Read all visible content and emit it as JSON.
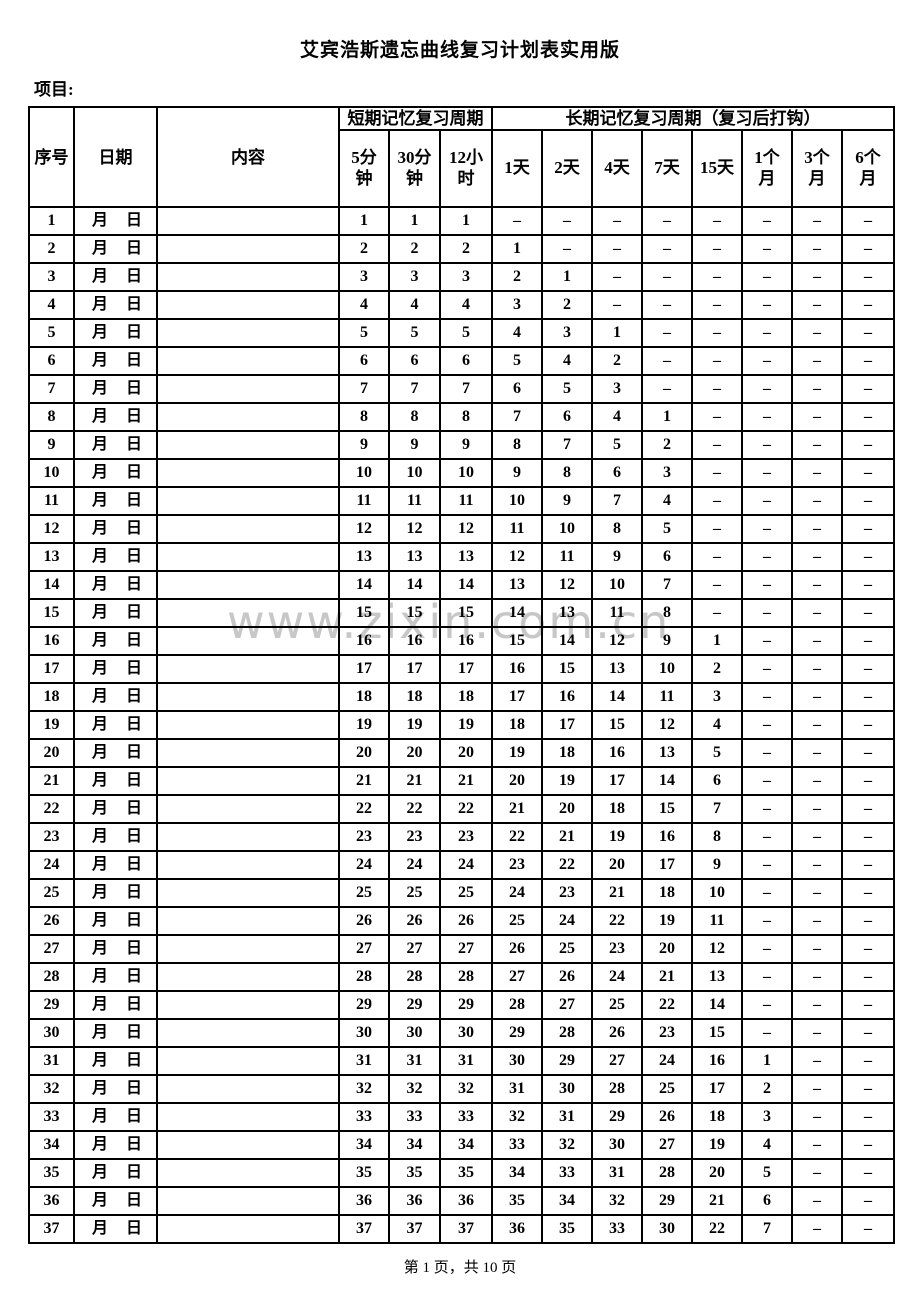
{
  "page": {
    "title": "艾宾浩斯遗忘曲线复习计划表实用版",
    "project_label": "项目:",
    "watermark": "www.zixin.com.cn",
    "footer": "第 1 页，共 10 页"
  },
  "colors": {
    "background": "#ffffff",
    "text": "#000000",
    "border": "#000000",
    "watermark": "#c7c7c7"
  },
  "table": {
    "headers": {
      "col_no": "序号",
      "col_date": "日期",
      "col_content": "内容",
      "group_short": "短期记忆复习周期",
      "group_long": "长期记忆复习周期（复习后打钩）",
      "short_cols": [
        "5分\n钟",
        "30分\n钟",
        "12小\n时"
      ],
      "long_cols": [
        "1天",
        "2天",
        "4天",
        "7天",
        "15天",
        "1个\n月",
        "3个\n月",
        "6个\n月"
      ]
    },
    "date_month": "月",
    "date_day": "日",
    "rows": [
      {
        "n": "1",
        "content": "",
        "cells": [
          "1",
          "1",
          "1",
          "–",
          "–",
          "–",
          "–",
          "–",
          "–",
          "–",
          "–"
        ]
      },
      {
        "n": "2",
        "content": "",
        "cells": [
          "2",
          "2",
          "2",
          "1",
          "–",
          "–",
          "–",
          "–",
          "–",
          "–",
          "–"
        ]
      },
      {
        "n": "3",
        "content": "",
        "cells": [
          "3",
          "3",
          "3",
          "2",
          "1",
          "–",
          "–",
          "–",
          "–",
          "–",
          "–"
        ]
      },
      {
        "n": "4",
        "content": "",
        "cells": [
          "4",
          "4",
          "4",
          "3",
          "2",
          "–",
          "–",
          "–",
          "–",
          "–",
          "–"
        ]
      },
      {
        "n": "5",
        "content": "",
        "cells": [
          "5",
          "5",
          "5",
          "4",
          "3",
          "1",
          "–",
          "–",
          "–",
          "–",
          "–"
        ]
      },
      {
        "n": "6",
        "content": "",
        "cells": [
          "6",
          "6",
          "6",
          "5",
          "4",
          "2",
          "–",
          "–",
          "–",
          "–",
          "–"
        ]
      },
      {
        "n": "7",
        "content": "",
        "cells": [
          "7",
          "7",
          "7",
          "6",
          "5",
          "3",
          "–",
          "–",
          "–",
          "–",
          "–"
        ]
      },
      {
        "n": "8",
        "content": "",
        "cells": [
          "8",
          "8",
          "8",
          "7",
          "6",
          "4",
          "1",
          "–",
          "–",
          "–",
          "–"
        ]
      },
      {
        "n": "9",
        "content": "",
        "cells": [
          "9",
          "9",
          "9",
          "8",
          "7",
          "5",
          "2",
          "–",
          "–",
          "–",
          "–"
        ]
      },
      {
        "n": "10",
        "content": "",
        "cells": [
          "10",
          "10",
          "10",
          "9",
          "8",
          "6",
          "3",
          "–",
          "–",
          "–",
          "–"
        ]
      },
      {
        "n": "11",
        "content": "",
        "cells": [
          "11",
          "11",
          "11",
          "10",
          "9",
          "7",
          "4",
          "–",
          "–",
          "–",
          "–"
        ]
      },
      {
        "n": "12",
        "content": "",
        "cells": [
          "12",
          "12",
          "12",
          "11",
          "10",
          "8",
          "5",
          "–",
          "–",
          "–",
          "–"
        ]
      },
      {
        "n": "13",
        "content": "",
        "cells": [
          "13",
          "13",
          "13",
          "12",
          "11",
          "9",
          "6",
          "–",
          "–",
          "–",
          "–"
        ]
      },
      {
        "n": "14",
        "content": "",
        "cells": [
          "14",
          "14",
          "14",
          "13",
          "12",
          "10",
          "7",
          "–",
          "–",
          "–",
          "–"
        ]
      },
      {
        "n": "15",
        "content": "",
        "cells": [
          "15",
          "15",
          "15",
          "14",
          "13",
          "11",
          "8",
          "–",
          "–",
          "–",
          "–"
        ]
      },
      {
        "n": "16",
        "content": "",
        "cells": [
          "16",
          "16",
          "16",
          "15",
          "14",
          "12",
          "9",
          "1",
          "–",
          "–",
          "–"
        ]
      },
      {
        "n": "17",
        "content": "",
        "cells": [
          "17",
          "17",
          "17",
          "16",
          "15",
          "13",
          "10",
          "2",
          "–",
          "–",
          "–"
        ]
      },
      {
        "n": "18",
        "content": "",
        "cells": [
          "18",
          "18",
          "18",
          "17",
          "16",
          "14",
          "11",
          "3",
          "–",
          "–",
          "–"
        ]
      },
      {
        "n": "19",
        "content": "",
        "cells": [
          "19",
          "19",
          "19",
          "18",
          "17",
          "15",
          "12",
          "4",
          "–",
          "–",
          "–"
        ]
      },
      {
        "n": "20",
        "content": "",
        "cells": [
          "20",
          "20",
          "20",
          "19",
          "18",
          "16",
          "13",
          "5",
          "–",
          "–",
          "–"
        ]
      },
      {
        "n": "21",
        "content": "",
        "cells": [
          "21",
          "21",
          "21",
          "20",
          "19",
          "17",
          "14",
          "6",
          "–",
          "–",
          "–"
        ]
      },
      {
        "n": "22",
        "content": "",
        "cells": [
          "22",
          "22",
          "22",
          "21",
          "20",
          "18",
          "15",
          "7",
          "–",
          "–",
          "–"
        ]
      },
      {
        "n": "23",
        "content": "",
        "cells": [
          "23",
          "23",
          "23",
          "22",
          "21",
          "19",
          "16",
          "8",
          "–",
          "–",
          "–"
        ]
      },
      {
        "n": "24",
        "content": "",
        "cells": [
          "24",
          "24",
          "24",
          "23",
          "22",
          "20",
          "17",
          "9",
          "–",
          "–",
          "–"
        ]
      },
      {
        "n": "25",
        "content": "",
        "cells": [
          "25",
          "25",
          "25",
          "24",
          "23",
          "21",
          "18",
          "10",
          "–",
          "–",
          "–"
        ]
      },
      {
        "n": "26",
        "content": "",
        "cells": [
          "26",
          "26",
          "26",
          "25",
          "24",
          "22",
          "19",
          "11",
          "–",
          "–",
          "–"
        ]
      },
      {
        "n": "27",
        "content": "",
        "cells": [
          "27",
          "27",
          "27",
          "26",
          "25",
          "23",
          "20",
          "12",
          "–",
          "–",
          "–"
        ]
      },
      {
        "n": "28",
        "content": "",
        "cells": [
          "28",
          "28",
          "28",
          "27",
          "26",
          "24",
          "21",
          "13",
          "–",
          "–",
          "–"
        ]
      },
      {
        "n": "29",
        "content": "",
        "cells": [
          "29",
          "29",
          "29",
          "28",
          "27",
          "25",
          "22",
          "14",
          "–",
          "–",
          "–"
        ]
      },
      {
        "n": "30",
        "content": "",
        "cells": [
          "30",
          "30",
          "30",
          "29",
          "28",
          "26",
          "23",
          "15",
          "–",
          "–",
          "–"
        ]
      },
      {
        "n": "31",
        "content": "",
        "cells": [
          "31",
          "31",
          "31",
          "30",
          "29",
          "27",
          "24",
          "16",
          "1",
          "–",
          "–"
        ]
      },
      {
        "n": "32",
        "content": "",
        "cells": [
          "32",
          "32",
          "32",
          "31",
          "30",
          "28",
          "25",
          "17",
          "2",
          "–",
          "–"
        ]
      },
      {
        "n": "33",
        "content": "",
        "cells": [
          "33",
          "33",
          "33",
          "32",
          "31",
          "29",
          "26",
          "18",
          "3",
          "–",
          "–"
        ]
      },
      {
        "n": "34",
        "content": "",
        "cells": [
          "34",
          "34",
          "34",
          "33",
          "32",
          "30",
          "27",
          "19",
          "4",
          "–",
          "–"
        ]
      },
      {
        "n": "35",
        "content": "",
        "cells": [
          "35",
          "35",
          "35",
          "34",
          "33",
          "31",
          "28",
          "20",
          "5",
          "–",
          "–"
        ]
      },
      {
        "n": "36",
        "content": "",
        "cells": [
          "36",
          "36",
          "36",
          "35",
          "34",
          "32",
          "29",
          "21",
          "6",
          "–",
          "–"
        ]
      },
      {
        "n": "37",
        "content": "",
        "cells": [
          "37",
          "37",
          "37",
          "36",
          "35",
          "33",
          "30",
          "22",
          "7",
          "–",
          "–"
        ]
      }
    ]
  }
}
